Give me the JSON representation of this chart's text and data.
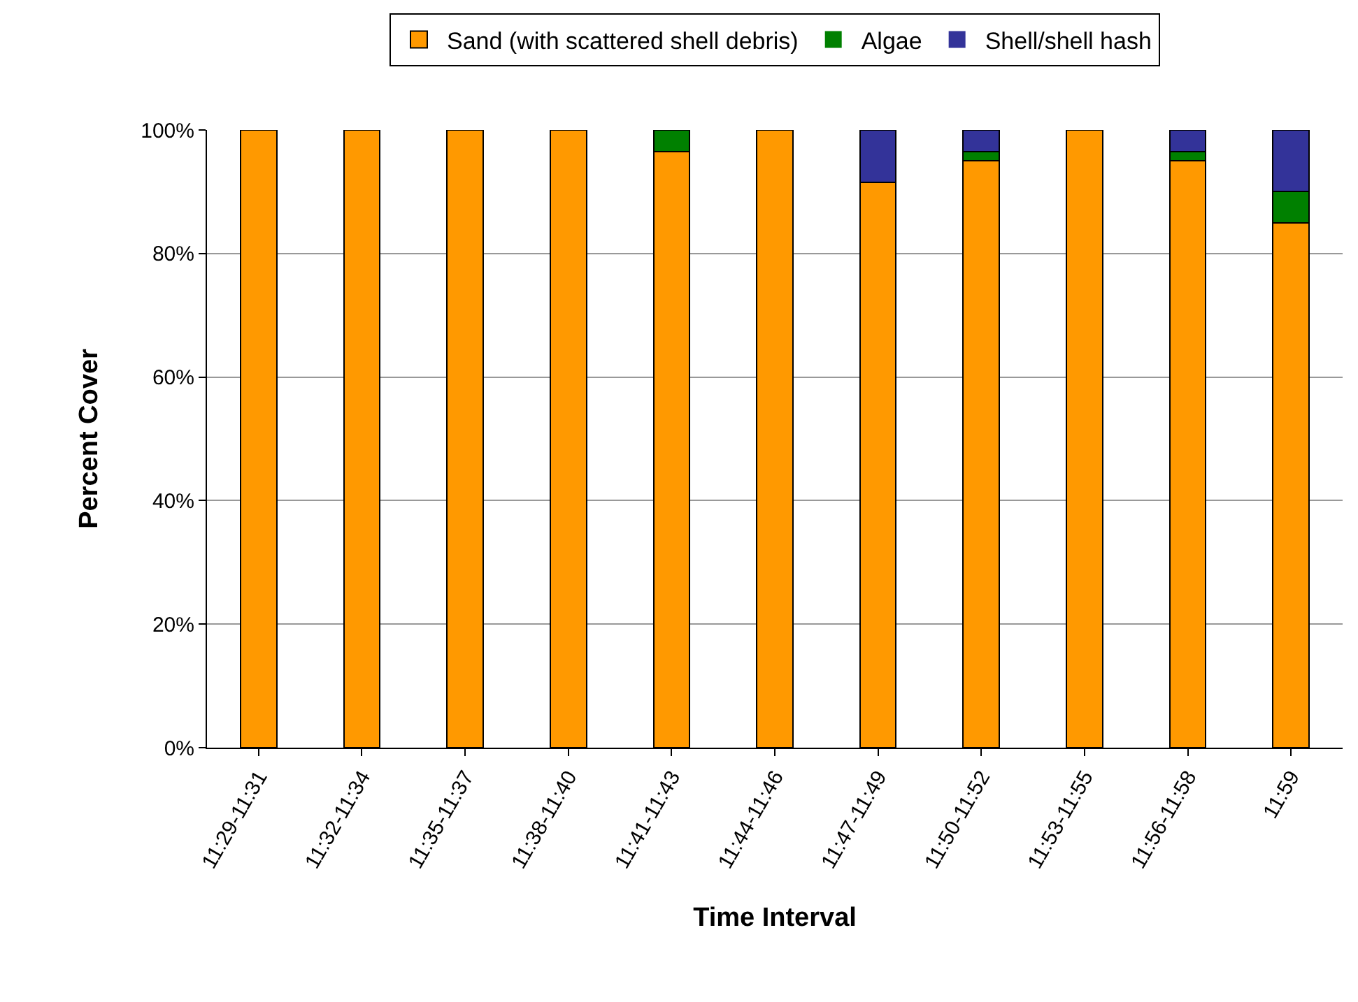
{
  "chart_data": {
    "type": "bar",
    "stacked": true,
    "xlabel": "Time Interval",
    "ylabel": "Percent Cover",
    "categories": [
      "11:29-11:31",
      "11:32-11:34",
      "11:35-11:37",
      "11:38-11:40",
      "11:41-11:43",
      "11:44-11:46",
      "11:47-11:49",
      "11:50-11:52",
      "11:53-11:55",
      "11:56-11:58",
      "11:59"
    ],
    "series": [
      {
        "name": "Sand (with scattered shell debris)",
        "color": "#ff9900",
        "values": [
          100,
          100,
          100,
          100,
          96.5,
          100,
          91.5,
          95,
          100,
          95,
          85
        ]
      },
      {
        "name": "Algae",
        "color": "#008000",
        "values": [
          0,
          0,
          0,
          0,
          3.5,
          0,
          0,
          1.5,
          0,
          1.5,
          5
        ]
      },
      {
        "name": "Shell/shell hash",
        "color": "#333399",
        "values": [
          0,
          0,
          0,
          0,
          0,
          0,
          8.5,
          3.5,
          0,
          3.5,
          10
        ]
      }
    ],
    "ylim": [
      0,
      100
    ],
    "yticks": [
      {
        "value": 0,
        "label": "0%"
      },
      {
        "value": 20,
        "label": "20%"
      },
      {
        "value": 40,
        "label": "40%"
      },
      {
        "value": 60,
        "label": "60%"
      },
      {
        "value": 80,
        "label": "80%"
      },
      {
        "value": 100,
        "label": "100%"
      }
    ],
    "grid": "y",
    "legend": "top"
  }
}
